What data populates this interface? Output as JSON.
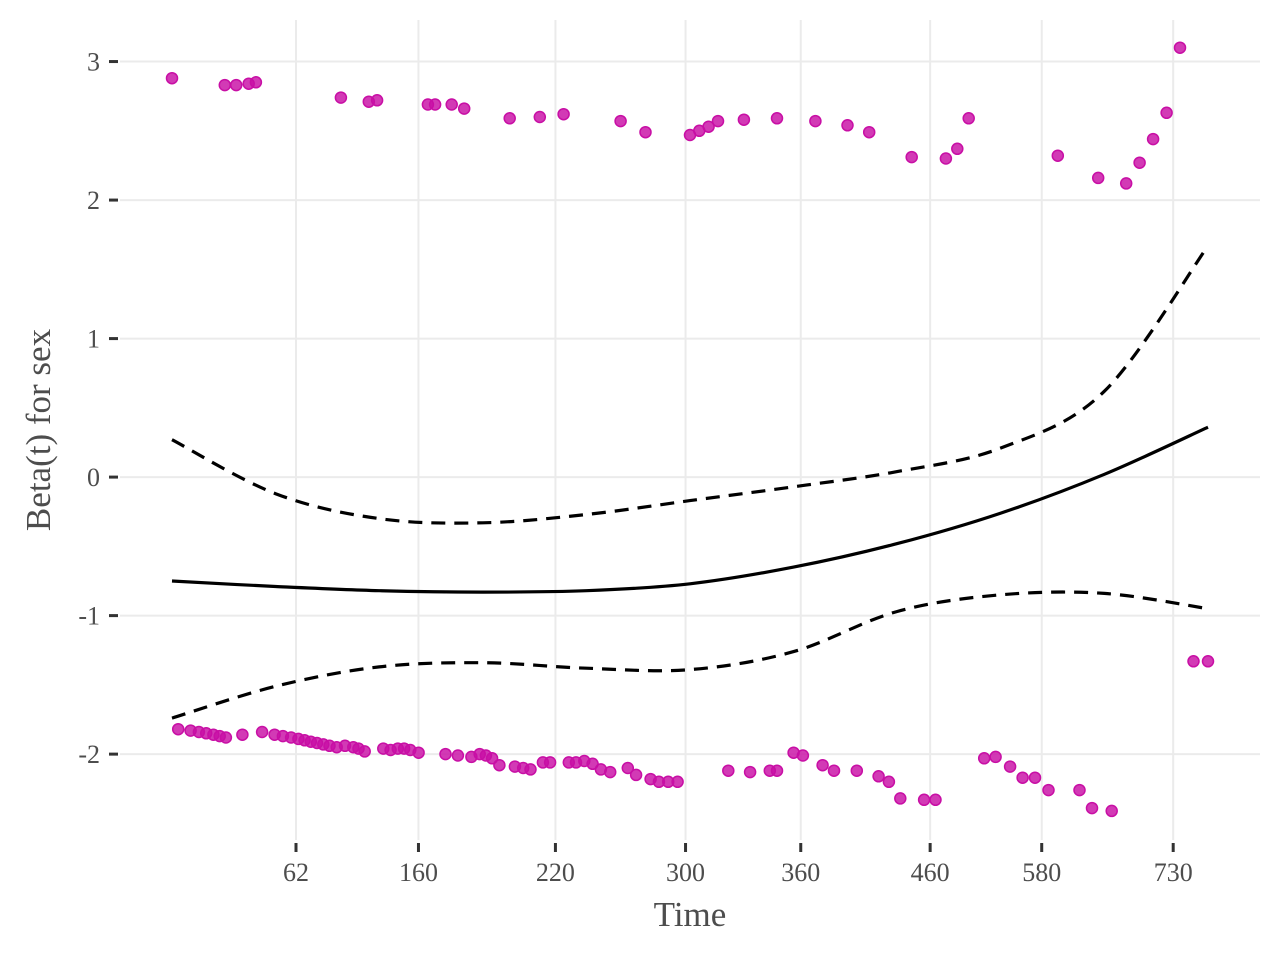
{
  "chart_data": {
    "type": "scatter",
    "xlabel": "Time",
    "ylabel": "Beta(t) for sex",
    "x_tick_labels": [
      "62",
      "160",
      "220",
      "300",
      "360",
      "460",
      "580",
      "730"
    ],
    "x_tick_positions": [
      0.1197,
      0.2379,
      0.3701,
      0.4957,
      0.6069,
      0.7318,
      0.8395,
      0.9664
    ],
    "y_ticks": [
      -2,
      -1,
      0,
      1,
      2,
      3
    ],
    "xlim": [
      0,
      1
    ],
    "ylim": [
      -2.62,
      3.3
    ],
    "grid": true,
    "legend": "none",
    "colors": {
      "points": "#c80fa5",
      "lines": "#000000"
    },
    "series": [
      {
        "name": "estimate",
        "style": "solid",
        "x": [
          0.0,
          0.1,
          0.2,
          0.3,
          0.4,
          0.5,
          0.6,
          0.7,
          0.8,
          0.9,
          1.0
        ],
        "y": [
          -0.75,
          -0.79,
          -0.82,
          -0.83,
          -0.82,
          -0.77,
          -0.65,
          -0.48,
          -0.26,
          0.02,
          0.36
        ]
      },
      {
        "name": "upper",
        "style": "dashed",
        "x": [
          0.0,
          0.1,
          0.2,
          0.3,
          0.4,
          0.5,
          0.6,
          0.7,
          0.8,
          0.9,
          1.0
        ],
        "y": [
          0.27,
          -0.12,
          -0.3,
          -0.33,
          -0.27,
          -0.17,
          -0.07,
          0.04,
          0.21,
          0.62,
          1.67
        ]
      },
      {
        "name": "lower",
        "style": "dashed",
        "x": [
          0.0,
          0.1,
          0.2,
          0.3,
          0.4,
          0.5,
          0.6,
          0.7,
          0.8,
          0.9,
          1.0
        ],
        "y": [
          -1.74,
          -1.51,
          -1.37,
          -1.34,
          -1.38,
          -1.39,
          -1.26,
          -0.97,
          -0.85,
          -0.84,
          -0.95
        ]
      }
    ],
    "points": [
      [
        0.0,
        2.88
      ],
      [
        0.051,
        2.83
      ],
      [
        0.062,
        2.83
      ],
      [
        0.074,
        2.84
      ],
      [
        0.081,
        2.85
      ],
      [
        0.163,
        2.74
      ],
      [
        0.19,
        2.71
      ],
      [
        0.198,
        2.72
      ],
      [
        0.247,
        2.69
      ],
      [
        0.254,
        2.69
      ],
      [
        0.27,
        2.69
      ],
      [
        0.282,
        2.66
      ],
      [
        0.326,
        2.59
      ],
      [
        0.355,
        2.6
      ],
      [
        0.378,
        2.62
      ],
      [
        0.433,
        2.57
      ],
      [
        0.457,
        2.49
      ],
      [
        0.5,
        2.47
      ],
      [
        0.509,
        2.5
      ],
      [
        0.518,
        2.53
      ],
      [
        0.527,
        2.57
      ],
      [
        0.552,
        2.58
      ],
      [
        0.584,
        2.59
      ],
      [
        0.621,
        2.57
      ],
      [
        0.652,
        2.54
      ],
      [
        0.673,
        2.49
      ],
      [
        0.714,
        2.31
      ],
      [
        0.747,
        2.3
      ],
      [
        0.758,
        2.37
      ],
      [
        0.769,
        2.59
      ],
      [
        0.855,
        2.32
      ],
      [
        0.894,
        2.16
      ],
      [
        0.921,
        2.12
      ],
      [
        0.934,
        2.27
      ],
      [
        0.947,
        2.44
      ],
      [
        0.96,
        2.63
      ],
      [
        0.973,
        3.1
      ],
      [
        0.986,
        -1.33
      ],
      [
        1.0,
        -1.33
      ],
      [
        0.006,
        -1.82
      ],
      [
        0.018,
        -1.83
      ],
      [
        0.026,
        -1.84
      ],
      [
        0.033,
        -1.85
      ],
      [
        0.04,
        -1.86
      ],
      [
        0.046,
        -1.87
      ],
      [
        0.052,
        -1.88
      ],
      [
        0.068,
        -1.86
      ],
      [
        0.087,
        -1.84
      ],
      [
        0.099,
        -1.86
      ],
      [
        0.107,
        -1.87
      ],
      [
        0.115,
        -1.88
      ],
      [
        0.122,
        -1.89
      ],
      [
        0.128,
        -1.9
      ],
      [
        0.134,
        -1.91
      ],
      [
        0.14,
        -1.92
      ],
      [
        0.146,
        -1.93
      ],
      [
        0.152,
        -1.94
      ],
      [
        0.159,
        -1.95
      ],
      [
        0.167,
        -1.94
      ],
      [
        0.175,
        -1.95
      ],
      [
        0.18,
        -1.96
      ],
      [
        0.186,
        -1.98
      ],
      [
        0.204,
        -1.96
      ],
      [
        0.211,
        -1.97
      ],
      [
        0.218,
        -1.96
      ],
      [
        0.224,
        -1.96
      ],
      [
        0.23,
        -1.97
      ],
      [
        0.238,
        -1.99
      ],
      [
        0.264,
        -2.0
      ],
      [
        0.276,
        -2.01
      ],
      [
        0.289,
        -2.02
      ],
      [
        0.297,
        -2.0
      ],
      [
        0.303,
        -2.01
      ],
      [
        0.309,
        -2.03
      ],
      [
        0.316,
        -2.08
      ],
      [
        0.331,
        -2.09
      ],
      [
        0.339,
        -2.1
      ],
      [
        0.346,
        -2.11
      ],
      [
        0.358,
        -2.06
      ],
      [
        0.365,
        -2.06
      ],
      [
        0.383,
        -2.06
      ],
      [
        0.39,
        -2.06
      ],
      [
        0.398,
        -2.05
      ],
      [
        0.406,
        -2.07
      ],
      [
        0.414,
        -2.11
      ],
      [
        0.423,
        -2.13
      ],
      [
        0.44,
        -2.1
      ],
      [
        0.448,
        -2.15
      ],
      [
        0.462,
        -2.18
      ],
      [
        0.47,
        -2.2
      ],
      [
        0.479,
        -2.2
      ],
      [
        0.488,
        -2.2
      ],
      [
        0.537,
        -2.12
      ],
      [
        0.558,
        -2.13
      ],
      [
        0.577,
        -2.12
      ],
      [
        0.584,
        -2.12
      ],
      [
        0.6,
        -1.99
      ],
      [
        0.609,
        -2.01
      ],
      [
        0.628,
        -2.08
      ],
      [
        0.639,
        -2.12
      ],
      [
        0.661,
        -2.12
      ],
      [
        0.682,
        -2.16
      ],
      [
        0.692,
        -2.2
      ],
      [
        0.703,
        -2.32
      ],
      [
        0.726,
        -2.33
      ],
      [
        0.737,
        -2.33
      ],
      [
        0.784,
        -2.03
      ],
      [
        0.795,
        -2.02
      ],
      [
        0.809,
        -2.09
      ],
      [
        0.821,
        -2.17
      ],
      [
        0.833,
        -2.17
      ],
      [
        0.846,
        -2.26
      ],
      [
        0.876,
        -2.26
      ],
      [
        0.888,
        -2.39
      ],
      [
        0.907,
        -2.41
      ]
    ]
  }
}
